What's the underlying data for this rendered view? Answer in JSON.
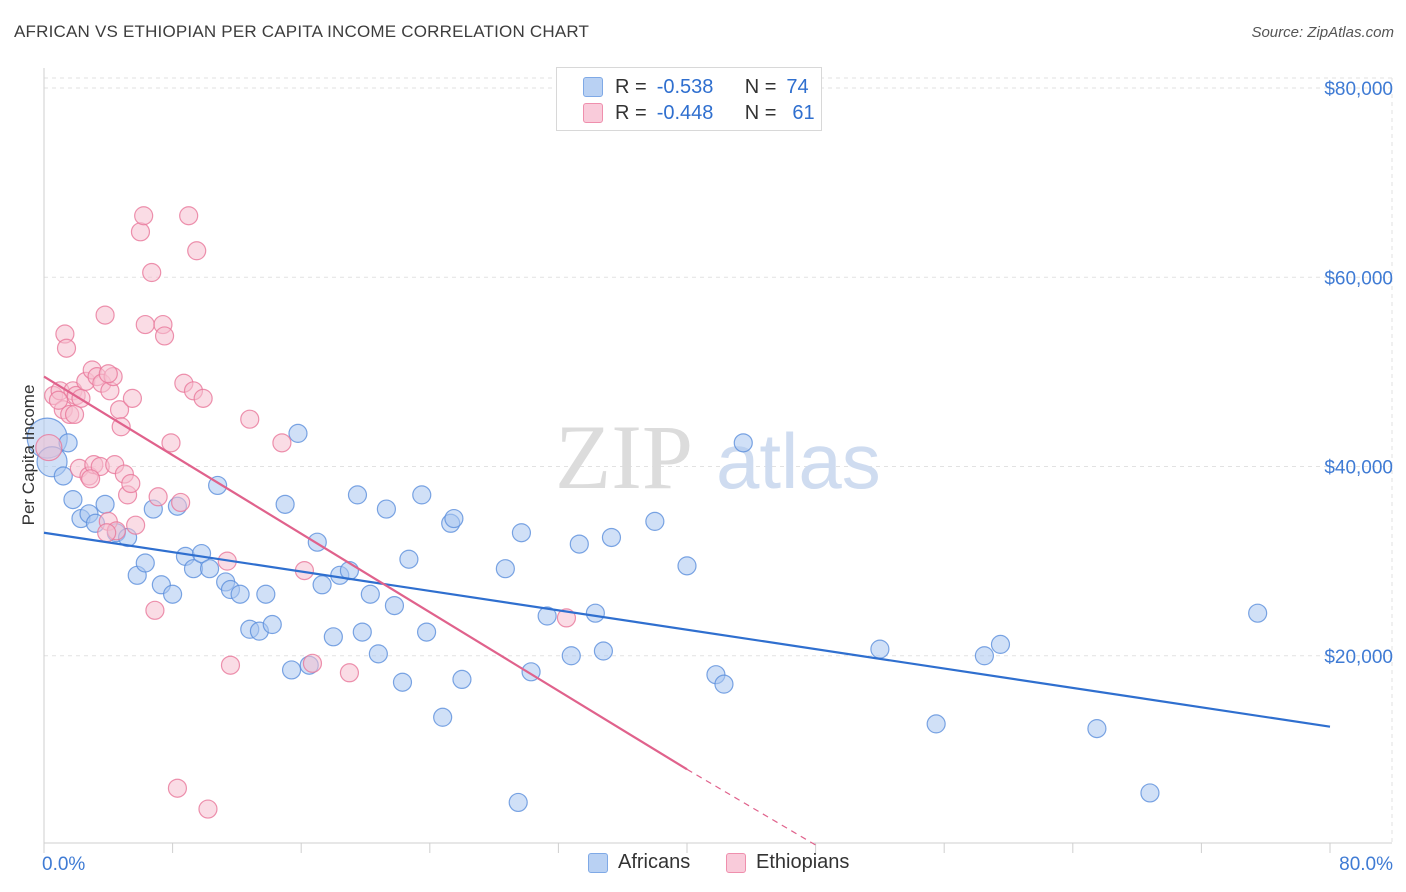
{
  "title": "AFRICAN VS ETHIOPIAN PER CAPITA INCOME CORRELATION CHART",
  "source": "Source: ZipAtlas.com",
  "watermark": {
    "zip": "ZIP",
    "atlas": "atlas"
  },
  "legend": {
    "rows": [
      {
        "r_label": "R =",
        "r_value": "-0.538",
        "n_label": "N =",
        "n_value": "74",
        "color": "#7fa9e6"
      },
      {
        "r_label": "R =",
        "r_value": "-0.448",
        "n_label": "N =",
        "n_value": "61",
        "color": "#ef8fad"
      }
    ]
  },
  "bottom_legend": {
    "africans": "Africans",
    "ethiopians": "Ethiopians"
  },
  "chart_data": {
    "type": "scatter",
    "title": "AFRICAN VS ETHIOPIAN PER CAPITA INCOME CORRELATION CHART",
    "xlabel": "",
    "ylabel": "Per Capita Income",
    "xlim": [
      0,
      80
    ],
    "ylim": [
      0,
      80000
    ],
    "x_tick_labels": [
      "0.0%",
      "80.0%"
    ],
    "y_tick_labels": [
      "$20,000",
      "$40,000",
      "$60,000",
      "$80,000"
    ],
    "y_ticks": [
      20000,
      40000,
      60000,
      80000
    ],
    "series": [
      {
        "name": "Africans",
        "color": "#5b8fdc",
        "fill": "#a9c6f0",
        "trend": {
          "x": [
            0,
            80
          ],
          "y": [
            33000,
            12500
          ]
        },
        "points": [
          [
            0.2,
            43000
          ],
          [
            0.5,
            40500
          ],
          [
            1.2,
            39000
          ],
          [
            1.8,
            36500
          ],
          [
            2.3,
            34500
          ],
          [
            2.8,
            35000
          ],
          [
            3.2,
            34000
          ],
          [
            3.8,
            36000
          ],
          [
            4.5,
            33000
          ],
          [
            5.2,
            32500
          ],
          [
            5.8,
            28500
          ],
          [
            6.3,
            29800
          ],
          [
            6.8,
            35500
          ],
          [
            7.3,
            27500
          ],
          [
            8.0,
            26500
          ],
          [
            8.3,
            35800
          ],
          [
            8.8,
            30500
          ],
          [
            9.3,
            29200
          ],
          [
            9.8,
            30800
          ],
          [
            10.3,
            29200
          ],
          [
            10.8,
            38000
          ],
          [
            11.3,
            27800
          ],
          [
            11.6,
            27000
          ],
          [
            12.2,
            26500
          ],
          [
            12.8,
            22800
          ],
          [
            13.4,
            22600
          ],
          [
            13.8,
            26500
          ],
          [
            14.2,
            23300
          ],
          [
            15.0,
            36000
          ],
          [
            15.4,
            18500
          ],
          [
            15.8,
            43500
          ],
          [
            16.5,
            19000
          ],
          [
            17.0,
            32000
          ],
          [
            17.3,
            27500
          ],
          [
            18.0,
            22000
          ],
          [
            18.4,
            28500
          ],
          [
            19.0,
            29000
          ],
          [
            19.5,
            37000
          ],
          [
            19.8,
            22500
          ],
          [
            20.3,
            26500
          ],
          [
            20.8,
            20200
          ],
          [
            21.3,
            35500
          ],
          [
            21.8,
            25300
          ],
          [
            22.3,
            17200
          ],
          [
            22.7,
            30200
          ],
          [
            23.5,
            37000
          ],
          [
            23.8,
            22500
          ],
          [
            24.8,
            13500
          ],
          [
            25.3,
            34000
          ],
          [
            25.5,
            34500
          ],
          [
            26.0,
            17500
          ],
          [
            28.7,
            29200
          ],
          [
            29.5,
            4500
          ],
          [
            29.7,
            33000
          ],
          [
            30.3,
            18300
          ],
          [
            31.3,
            24200
          ],
          [
            32.8,
            20000
          ],
          [
            33.3,
            31800
          ],
          [
            34.3,
            24500
          ],
          [
            34.8,
            20500
          ],
          [
            35.3,
            32500
          ],
          [
            38.0,
            34200
          ],
          [
            40.0,
            29500
          ],
          [
            41.8,
            18000
          ],
          [
            42.3,
            17000
          ],
          [
            43.5,
            42500
          ],
          [
            52.0,
            20700
          ],
          [
            55.5,
            12800
          ],
          [
            58.5,
            20000
          ],
          [
            59.5,
            21200
          ],
          [
            65.5,
            12300
          ],
          [
            68.8,
            5500
          ],
          [
            75.5,
            24500
          ],
          [
            1.5,
            42500
          ]
        ]
      },
      {
        "name": "Ethiopians",
        "color": "#e8779a",
        "fill": "#f6bfd0",
        "trend": {
          "x": [
            0,
            40
          ],
          "y": [
            49500,
            8000
          ]
        },
        "trend_dashed": {
          "x": [
            40,
            48
          ],
          "y": [
            8000,
            0
          ]
        },
        "points": [
          [
            0.3,
            42000
          ],
          [
            0.6,
            47500
          ],
          [
            1.0,
            48000
          ],
          [
            1.2,
            46000
          ],
          [
            1.3,
            54000
          ],
          [
            1.4,
            52500
          ],
          [
            1.6,
            45500
          ],
          [
            1.8,
            48000
          ],
          [
            2.0,
            47500
          ],
          [
            2.2,
            39800
          ],
          [
            2.3,
            47200
          ],
          [
            2.6,
            49000
          ],
          [
            2.8,
            39000
          ],
          [
            3.0,
            50200
          ],
          [
            3.1,
            40200
          ],
          [
            3.3,
            49500
          ],
          [
            3.5,
            40000
          ],
          [
            3.6,
            48800
          ],
          [
            3.8,
            56000
          ],
          [
            4.0,
            34200
          ],
          [
            4.1,
            48000
          ],
          [
            4.3,
            49500
          ],
          [
            4.4,
            40200
          ],
          [
            4.5,
            33200
          ],
          [
            4.7,
            46000
          ],
          [
            4.8,
            44200
          ],
          [
            5.0,
            39200
          ],
          [
            5.2,
            37000
          ],
          [
            5.4,
            38200
          ],
          [
            5.5,
            47200
          ],
          [
            5.7,
            33800
          ],
          [
            6.0,
            64800
          ],
          [
            6.2,
            66500
          ],
          [
            6.3,
            55000
          ],
          [
            6.7,
            60500
          ],
          [
            6.9,
            24800
          ],
          [
            7.1,
            36800
          ],
          [
            7.4,
            55000
          ],
          [
            7.5,
            53800
          ],
          [
            7.9,
            42500
          ],
          [
            8.3,
            6000
          ],
          [
            8.5,
            36200
          ],
          [
            8.7,
            48800
          ],
          [
            9.0,
            66500
          ],
          [
            9.3,
            48000
          ],
          [
            9.5,
            62800
          ],
          [
            9.9,
            47200
          ],
          [
            10.2,
            3800
          ],
          [
            11.4,
            30000
          ],
          [
            11.6,
            19000
          ],
          [
            12.8,
            45000
          ],
          [
            14.8,
            42500
          ],
          [
            16.2,
            29000
          ],
          [
            16.7,
            19200
          ],
          [
            19.0,
            18200
          ],
          [
            32.5,
            24000
          ],
          [
            4.0,
            49800
          ],
          [
            2.9,
            38700
          ],
          [
            1.9,
            45500
          ],
          [
            0.9,
            47000
          ],
          [
            3.9,
            33000
          ]
        ]
      }
    ]
  }
}
